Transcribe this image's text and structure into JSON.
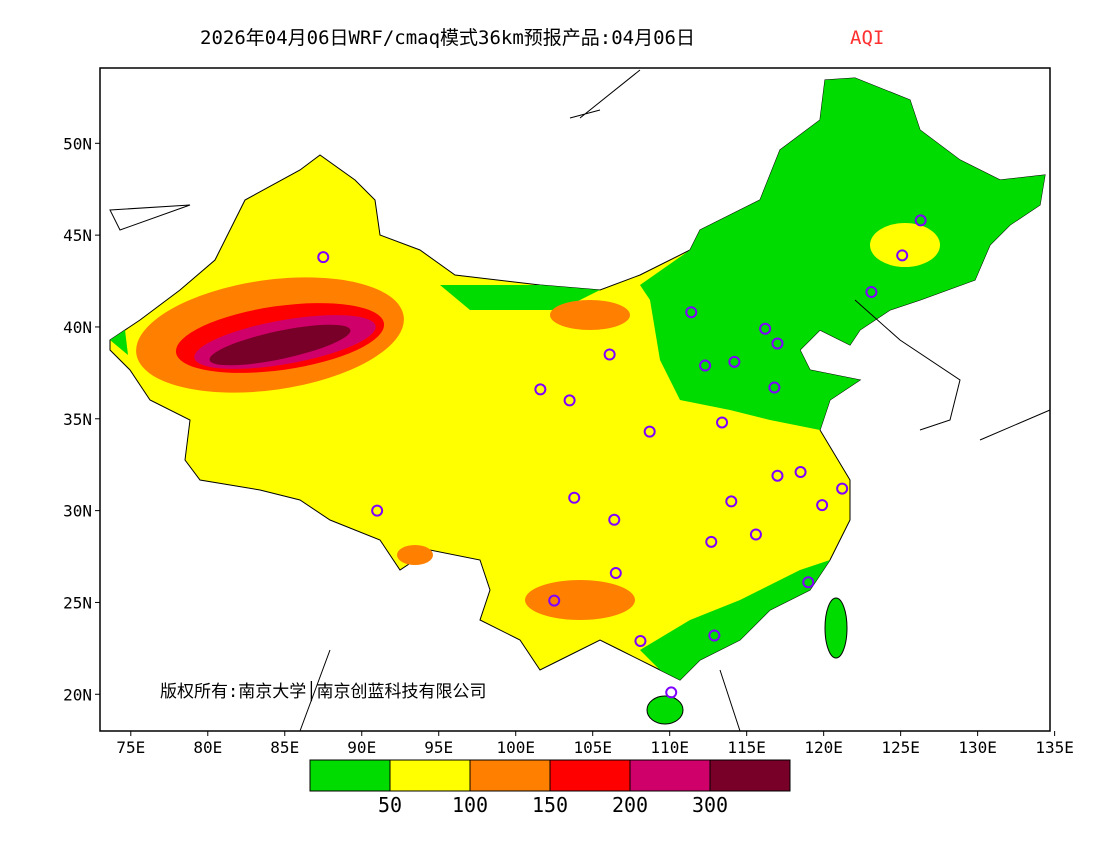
{
  "title": {
    "main": "2026年04月06日WRF/cmaq模式36km预报产品:04月06日",
    "variable": "AQI",
    "variable_color": "#ff3030"
  },
  "copyright": "版权所有:南京大学│南京创蓝科技有限公司",
  "axes": {
    "lon_labels": [
      "75E",
      "80E",
      "85E",
      "90E",
      "95E",
      "100E",
      "105E",
      "110E",
      "115E",
      "120E",
      "125E",
      "130E",
      "135E"
    ],
    "lon_values": [
      75,
      80,
      85,
      90,
      95,
      100,
      105,
      110,
      115,
      120,
      125,
      130,
      135
    ],
    "lat_labels": [
      "50N",
      "45N",
      "40N",
      "35N",
      "30N",
      "25N",
      "20N"
    ],
    "lat_values": [
      50,
      45,
      40,
      35,
      30,
      25,
      20
    ],
    "lon_range": [
      73,
      134.7
    ],
    "lat_range": [
      18,
      54.1
    ]
  },
  "legend": {
    "colors": [
      "#00dc00",
      "#ffff00",
      "#ff8000",
      "#ff0000",
      "#d0006a",
      "#780028"
    ],
    "labels": [
      "50",
      "100",
      "150",
      "200",
      "300"
    ]
  },
  "stations": [
    [
      87.5,
      43.8
    ],
    [
      91.0,
      30.0
    ],
    [
      101.6,
      36.6
    ],
    [
      103.5,
      36.0
    ],
    [
      106.1,
      38.5
    ],
    [
      108.7,
      34.3
    ],
    [
      111.4,
      40.8
    ],
    [
      112.3,
      37.9
    ],
    [
      114.2,
      38.1
    ],
    [
      116.2,
      39.9
    ],
    [
      117.0,
      39.1
    ],
    [
      116.8,
      36.7
    ],
    [
      113.4,
      34.8
    ],
    [
      117.0,
      31.9
    ],
    [
      118.5,
      32.1
    ],
    [
      121.2,
      31.2
    ],
    [
      119.9,
      30.3
    ],
    [
      114.0,
      30.5
    ],
    [
      115.6,
      28.7
    ],
    [
      112.7,
      28.3
    ],
    [
      106.4,
      29.5
    ],
    [
      103.8,
      30.7
    ],
    [
      106.5,
      26.6
    ],
    [
      102.5,
      25.1
    ],
    [
      108.1,
      22.9
    ],
    [
      112.9,
      23.2
    ],
    [
      119.0,
      26.1
    ],
    [
      110.1,
      20.1
    ],
    [
      123.1,
      41.9
    ],
    [
      125.1,
      43.9
    ],
    [
      126.3,
      45.8
    ]
  ]
}
